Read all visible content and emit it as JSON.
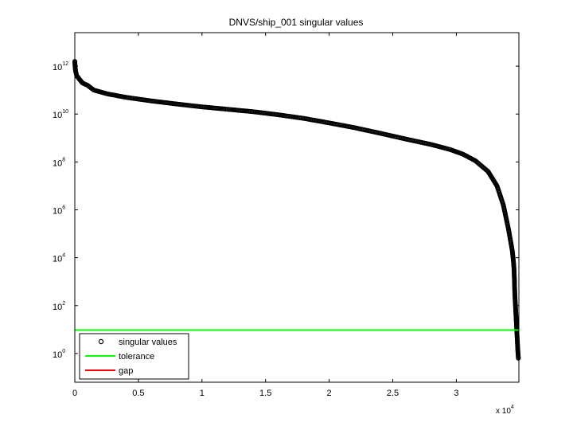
{
  "chart_data": {
    "type": "scatter",
    "title": "DNVS/ship_001 singular values",
    "xlabel": "",
    "ylabel": "",
    "x_multiplier_label": {
      "base": "x 10",
      "exp": "4"
    },
    "xlim": [
      0,
      34920
    ],
    "ylim_log10": [
      -1.2,
      13.4
    ],
    "y_scale": "log",
    "x_ticks": [
      {
        "value": 0,
        "label": "0"
      },
      {
        "value": 5000,
        "label": "0.5"
      },
      {
        "value": 10000,
        "label": "1"
      },
      {
        "value": 15000,
        "label": "1.5"
      },
      {
        "value": 20000,
        "label": "2"
      },
      {
        "value": 25000,
        "label": "2.5"
      },
      {
        "value": 30000,
        "label": "3"
      }
    ],
    "y_ticks": [
      {
        "log10": 0,
        "base": "10",
        "exp": "0"
      },
      {
        "log10": 2,
        "base": "10",
        "exp": "2"
      },
      {
        "log10": 4,
        "base": "10",
        "exp": "4"
      },
      {
        "log10": 6,
        "base": "10",
        "exp": "6"
      },
      {
        "log10": 8,
        "base": "10",
        "exp": "8"
      },
      {
        "log10": 10,
        "base": "10",
        "exp": "10"
      },
      {
        "log10": 12,
        "base": "10",
        "exp": "12"
      }
    ],
    "grid": false,
    "legend_position": "bottom-left",
    "series": [
      {
        "name": "singular values",
        "marker": "open-circle",
        "color": "#000000",
        "points_log10": [
          [
            0,
            12.2
          ],
          [
            20,
            12.0
          ],
          [
            60,
            11.8
          ],
          [
            150,
            11.6
          ],
          [
            300,
            11.5
          ],
          [
            600,
            11.3
          ],
          [
            1000,
            11.2
          ],
          [
            1500,
            11.0
          ],
          [
            2500,
            10.85
          ],
          [
            4000,
            10.7
          ],
          [
            6000,
            10.55
          ],
          [
            8000,
            10.42
          ],
          [
            10000,
            10.3
          ],
          [
            12000,
            10.2
          ],
          [
            14000,
            10.1
          ],
          [
            16000,
            9.97
          ],
          [
            18000,
            9.82
          ],
          [
            20000,
            9.63
          ],
          [
            22000,
            9.43
          ],
          [
            24000,
            9.2
          ],
          [
            26000,
            8.96
          ],
          [
            28000,
            8.73
          ],
          [
            29500,
            8.52
          ],
          [
            30500,
            8.33
          ],
          [
            31500,
            8.05
          ],
          [
            32500,
            7.6
          ],
          [
            33200,
            7.0
          ],
          [
            33700,
            6.2
          ],
          [
            34100,
            5.2
          ],
          [
            34400,
            4.3
          ],
          [
            34500,
            3.8
          ],
          [
            34540,
            3.5
          ],
          [
            34560,
            3.2
          ],
          [
            34580,
            2.9
          ],
          [
            34600,
            2.5
          ],
          [
            34640,
            2.1
          ],
          [
            34680,
            1.7
          ],
          [
            34720,
            1.3
          ],
          [
            34760,
            0.9
          ],
          [
            34800,
            0.5
          ],
          [
            34840,
            0.1
          ],
          [
            34880,
            -0.2
          ]
        ]
      },
      {
        "name": "tolerance",
        "color": "#00ff00",
        "y_log10": 0.98
      },
      {
        "name": "gap",
        "color": "#ff0000"
      }
    ]
  }
}
